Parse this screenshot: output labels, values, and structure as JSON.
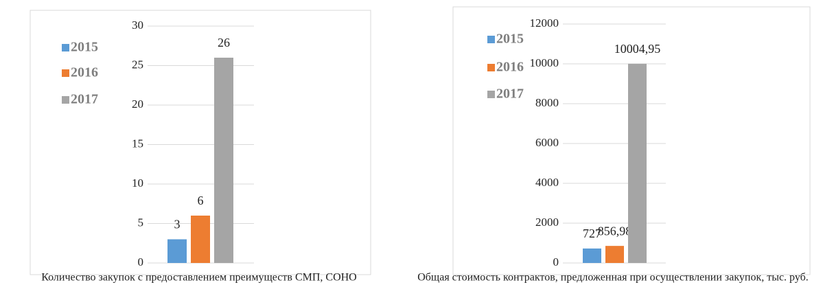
{
  "chart_data": [
    {
      "type": "bar",
      "title": "Количество закупок с предоставлением преимуществ СМП, СОНО",
      "series": [
        {
          "name": "2015",
          "color": "#5b9bd5",
          "values": [
            3
          ]
        },
        {
          "name": "2016",
          "color": "#ed7d31",
          "values": [
            6
          ]
        },
        {
          "name": "2017",
          "color": "#a5a5a5",
          "values": [
            26
          ]
        }
      ],
      "ylim": [
        0,
        30
      ],
      "yticks": [
        0,
        5,
        10,
        15,
        20,
        25,
        30
      ],
      "grid": true,
      "legend": "left"
    },
    {
      "type": "bar",
      "title": "Общая стоимость контрактов, предложенная при осуществлении закупок, тыс. руб.",
      "series": [
        {
          "name": "2015",
          "color": "#5b9bd5",
          "values": [
            727
          ],
          "value_labels": [
            "727"
          ]
        },
        {
          "name": "2016",
          "color": "#ed7d31",
          "values": [
            856.98
          ],
          "value_labels": [
            "856,98"
          ]
        },
        {
          "name": "2017",
          "color": "#a5a5a5",
          "values": [
            10004.95
          ],
          "value_labels": [
            "10004,95"
          ]
        }
      ],
      "ylim": [
        0,
        12000
      ],
      "yticks": [
        0,
        2000,
        4000,
        6000,
        8000,
        10000,
        12000
      ],
      "grid": true,
      "legend": "left"
    }
  ]
}
